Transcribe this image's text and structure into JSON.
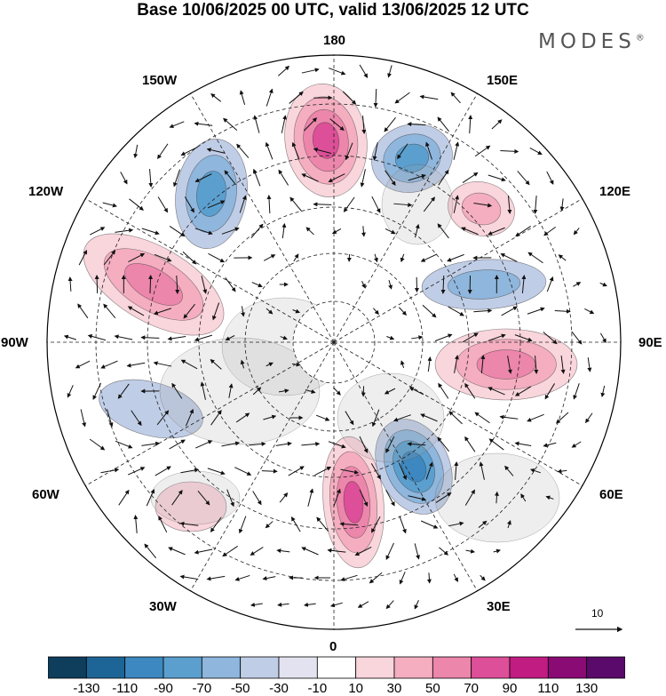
{
  "title": "Base 10/06/2025 00 UTC, valid 13/06/2025 12 UTC",
  "brand": "MODES",
  "brand_mark": "®",
  "longitude_labels": {
    "n180": "180",
    "e150": "150E",
    "e120": "120E",
    "e90": "90E",
    "e60": "60E",
    "e30": "30E",
    "s0": "0",
    "w30": "30W",
    "w60": "60W",
    "w90": "90W",
    "w120": "120W",
    "w150": "150W"
  },
  "reference_vector_label": "10",
  "colorbar": {
    "tick_labels": [
      "-130",
      "-110",
      "-90",
      "-70",
      "-50",
      "-30",
      "-10",
      "10",
      "30",
      "50",
      "70",
      "90",
      "110",
      "130"
    ],
    "colors": [
      "#0f3d5c",
      "#1d6596",
      "#3d88c0",
      "#5b9fcf",
      "#8fb6dc",
      "#c0cde6",
      "#e3e2f0",
      "#ffffff",
      "#f9d5dc",
      "#f4aec0",
      "#ec86ab",
      "#dd4f98",
      "#c01c82",
      "#8a0b74",
      "#5a0a6b"
    ]
  },
  "anomaly_centers": [
    {
      "lon_label": "180",
      "sign": "positive",
      "peak_class": "90"
    },
    {
      "lon_label": "150E",
      "sign": "negative",
      "peak_class": "-70"
    },
    {
      "lon_label": "120E",
      "sign": "positive",
      "peak_class": "50"
    },
    {
      "lon_label": "105E",
      "sign": "negative",
      "peak_class": "-50"
    },
    {
      "lon_label": "80E",
      "sign": "positive",
      "peak_class": "70"
    },
    {
      "lon_label": "30E",
      "sign": "negative",
      "peak_class": "-90"
    },
    {
      "lon_label": "0",
      "sign": "positive",
      "peak_class": "90"
    },
    {
      "lon_label": "120W",
      "sign": "positive",
      "peak_class": "70"
    },
    {
      "lon_label": "150W",
      "sign": "negative",
      "peak_class": "-70"
    },
    {
      "lon_label": "20W",
      "sign": "positive",
      "peak_class": "30"
    },
    {
      "lon_label": "80W",
      "sign": "negative",
      "peak_class": "-30"
    }
  ]
}
